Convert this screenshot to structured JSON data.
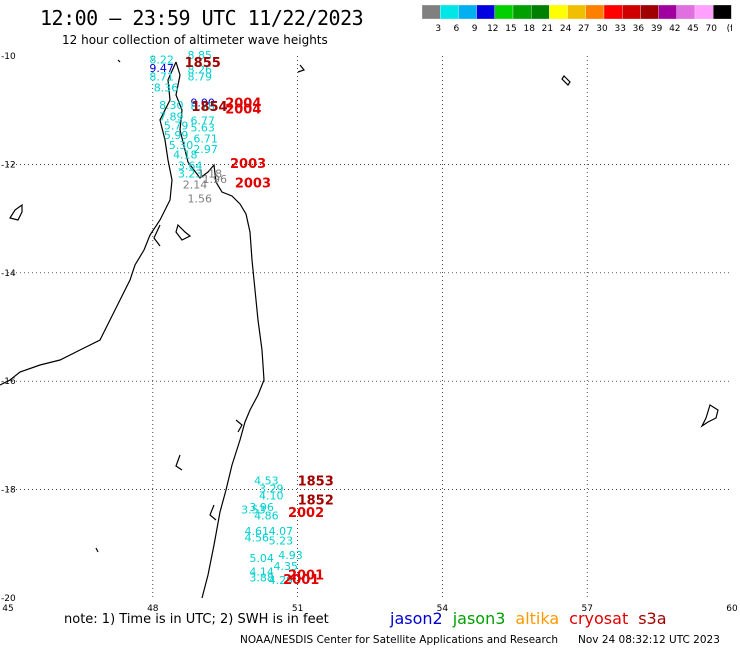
{
  "header": {
    "title": "12:00 – 23:59 UTC 11/22/2023",
    "subtitle": "12 hour collection of altimeter wave heights"
  },
  "color_scale": {
    "ticks": [
      "3",
      "6",
      "9",
      "12",
      "15",
      "18",
      "21",
      "24",
      "27",
      "30",
      "33",
      "36",
      "39",
      "42",
      "45",
      "70",
      "(ft)"
    ],
    "colors": [
      "#808080",
      "#00e5e5",
      "#00b0f0",
      "#0000e0",
      "#00d000",
      "#00a000",
      "#008000",
      "#ffff00",
      "#f0c000",
      "#ff8000",
      "#ff0000",
      "#d00000",
      "#a00000",
      "#a000a0",
      "#e070e0",
      "#ffa0ff",
      "#000000"
    ]
  },
  "axes": {
    "x_ticks": [
      "45",
      "48",
      "51",
      "54",
      "57",
      "60"
    ],
    "y_ticks": [
      "-10",
      "-12",
      "-14",
      "-16",
      "-18",
      "-20"
    ]
  },
  "observations": [
    {
      "t": "8.22",
      "c": "#00d0d0",
      "lon": 47.93,
      "lat": -10.06
    },
    {
      "t": "8.85",
      "c": "#00d0d0",
      "lon": 48.72,
      "lat": -9.98
    },
    {
      "t": "9.47",
      "c": "#0000e0",
      "lon": 47.93,
      "lat": -10.22
    },
    {
      "t": "8.26",
      "c": "#00d0d0",
      "lon": 48.72,
      "lat": -10.25
    },
    {
      "t": "8.71",
      "c": "#00d0d0",
      "lon": 47.93,
      "lat": -10.38
    },
    {
      "t": "8.79",
      "c": "#00d0d0",
      "lon": 48.72,
      "lat": -10.38
    },
    {
      "t": "8.36",
      "c": "#00d0d0",
      "lon": 48.02,
      "lat": -10.58
    },
    {
      "t": "8.30",
      "c": "#00d0d0",
      "lon": 48.13,
      "lat": -10.9
    },
    {
      "t": "9.00",
      "c": "#0000e0",
      "lon": 48.78,
      "lat": -10.86
    },
    {
      "t": "8.78",
      "c": "#00d0d0",
      "lon": 48.78,
      "lat": -10.92
    },
    {
      "t": "7.89",
      "c": "#00d0d0",
      "lon": 48.13,
      "lat": -11.12
    },
    {
      "t": "6.77",
      "c": "#00d0d0",
      "lon": 48.78,
      "lat": -11.19
    },
    {
      "t": "5.79",
      "c": "#00d0d0",
      "lon": 48.23,
      "lat": -11.28
    },
    {
      "t": "5.63",
      "c": "#00d0d0",
      "lon": 48.78,
      "lat": -11.32
    },
    {
      "t": "5.99",
      "c": "#00d0d0",
      "lon": 48.23,
      "lat": -11.46
    },
    {
      "t": "6.71",
      "c": "#00d0d0",
      "lon": 48.84,
      "lat": -11.52
    },
    {
      "t": "5.30",
      "c": "#00d0d0",
      "lon": 48.33,
      "lat": -11.64
    },
    {
      "t": "2.97",
      "c": "#00d0d0",
      "lon": 48.84,
      "lat": -11.72
    },
    {
      "t": "4.18",
      "c": "#00d0d0",
      "lon": 48.42,
      "lat": -11.82
    },
    {
      "t": "3.64",
      "c": "#00d0d0",
      "lon": 48.52,
      "lat": -12.02
    },
    {
      "t": "3.23",
      "c": "#00d0d0",
      "lon": 48.52,
      "lat": -12.17
    },
    {
      "t": "1.18",
      "c": "#808080",
      "lon": 48.93,
      "lat": -12.17
    },
    {
      "t": "1.96",
      "c": "#808080",
      "lon": 49.03,
      "lat": -12.27
    },
    {
      "t": "2.14",
      "c": "#808080",
      "lon": 48.62,
      "lat": -12.37
    },
    {
      "t": "1.56",
      "c": "#808080",
      "lon": 48.72,
      "lat": -12.63
    },
    {
      "t": "4.53",
      "c": "#00d0d0",
      "lon": 50.1,
      "lat": -17.83
    },
    {
      "t": "3.29",
      "c": "#00d0d0",
      "lon": 50.2,
      "lat": -17.98
    },
    {
      "t": "4.10",
      "c": "#00d0d0",
      "lon": 50.2,
      "lat": -18.11
    },
    {
      "t": "3.96",
      "c": "#00d0d0",
      "lon": 50.0,
      "lat": -18.32
    },
    {
      "t": "3.53",
      "c": "#00d0d0",
      "lon": 49.83,
      "lat": -18.37
    },
    {
      "t": "4.86",
      "c": "#00d0d0",
      "lon": 50.1,
      "lat": -18.48
    },
    {
      "t": "4.61",
      "c": "#00d0d0",
      "lon": 49.9,
      "lat": -18.76
    },
    {
      "t": "4.07",
      "c": "#00d0d0",
      "lon": 50.4,
      "lat": -18.76
    },
    {
      "t": "4.56",
      "c": "#00d0d0",
      "lon": 49.9,
      "lat": -18.88
    },
    {
      "t": "5.23",
      "c": "#00d0d0",
      "lon": 50.4,
      "lat": -18.94
    },
    {
      "t": "4.93",
      "c": "#00d0d0",
      "lon": 50.6,
      "lat": -19.21
    },
    {
      "t": "5.04",
      "c": "#00d0d0",
      "lon": 50.0,
      "lat": -19.26
    },
    {
      "t": "4.35",
      "c": "#00d0d0",
      "lon": 50.5,
      "lat": -19.41
    },
    {
      "t": "4.14",
      "c": "#00d0d0",
      "lon": 50.0,
      "lat": -19.51
    },
    {
      "t": "3.88",
      "c": "#00d0d0",
      "lon": 50.0,
      "lat": -19.62
    },
    {
      "t": "4.29",
      "c": "#00d0d0",
      "lon": 50.4,
      "lat": -19.67
    }
  ],
  "times": [
    {
      "t": "1855",
      "c": "#a00000",
      "lon": 48.66,
      "lat": -10.11
    },
    {
      "t": "1854",
      "c": "#a00000",
      "lon": 48.8,
      "lat": -10.92
    },
    {
      "t": "2004",
      "c": "#e00000",
      "lon": 49.5,
      "lat": -10.86
    },
    {
      "t": "2004",
      "c": "#e00000",
      "lon": 49.5,
      "lat": -10.97
    },
    {
      "t": "2003",
      "c": "#e00000",
      "lon": 49.6,
      "lat": -11.97
    },
    {
      "t": "2003",
      "c": "#e00000",
      "lon": 49.7,
      "lat": -12.33
    },
    {
      "t": "1853",
      "c": "#a00000",
      "lon": 51.0,
      "lat": -17.83
    },
    {
      "t": "1852",
      "c": "#a00000",
      "lon": 51.0,
      "lat": -18.18
    },
    {
      "t": "2002",
      "c": "#e00000",
      "lon": 50.8,
      "lat": -18.41
    },
    {
      "t": "2001",
      "c": "#e00000",
      "lon": 50.8,
      "lat": -19.57
    },
    {
      "t": "2001",
      "c": "#e00000",
      "lon": 50.7,
      "lat": -19.65
    }
  ],
  "note": "note: 1) Time is in UTC; 2) SWH is in feet",
  "satellites": [
    {
      "name": "jason2",
      "color": "#0000d0"
    },
    {
      "name": "jason3",
      "color": "#00a000"
    },
    {
      "name": "altika",
      "color": "#ff9900"
    },
    {
      "name": "cryosat",
      "color": "#e00000"
    },
    {
      "name": "s3a",
      "color": "#a00000"
    }
  ],
  "footer": {
    "credit": "NOAA/NESDIS Center for Satellite Applications and Research",
    "timestamp": "Nov 24 08:32:12 UTC 2023"
  }
}
